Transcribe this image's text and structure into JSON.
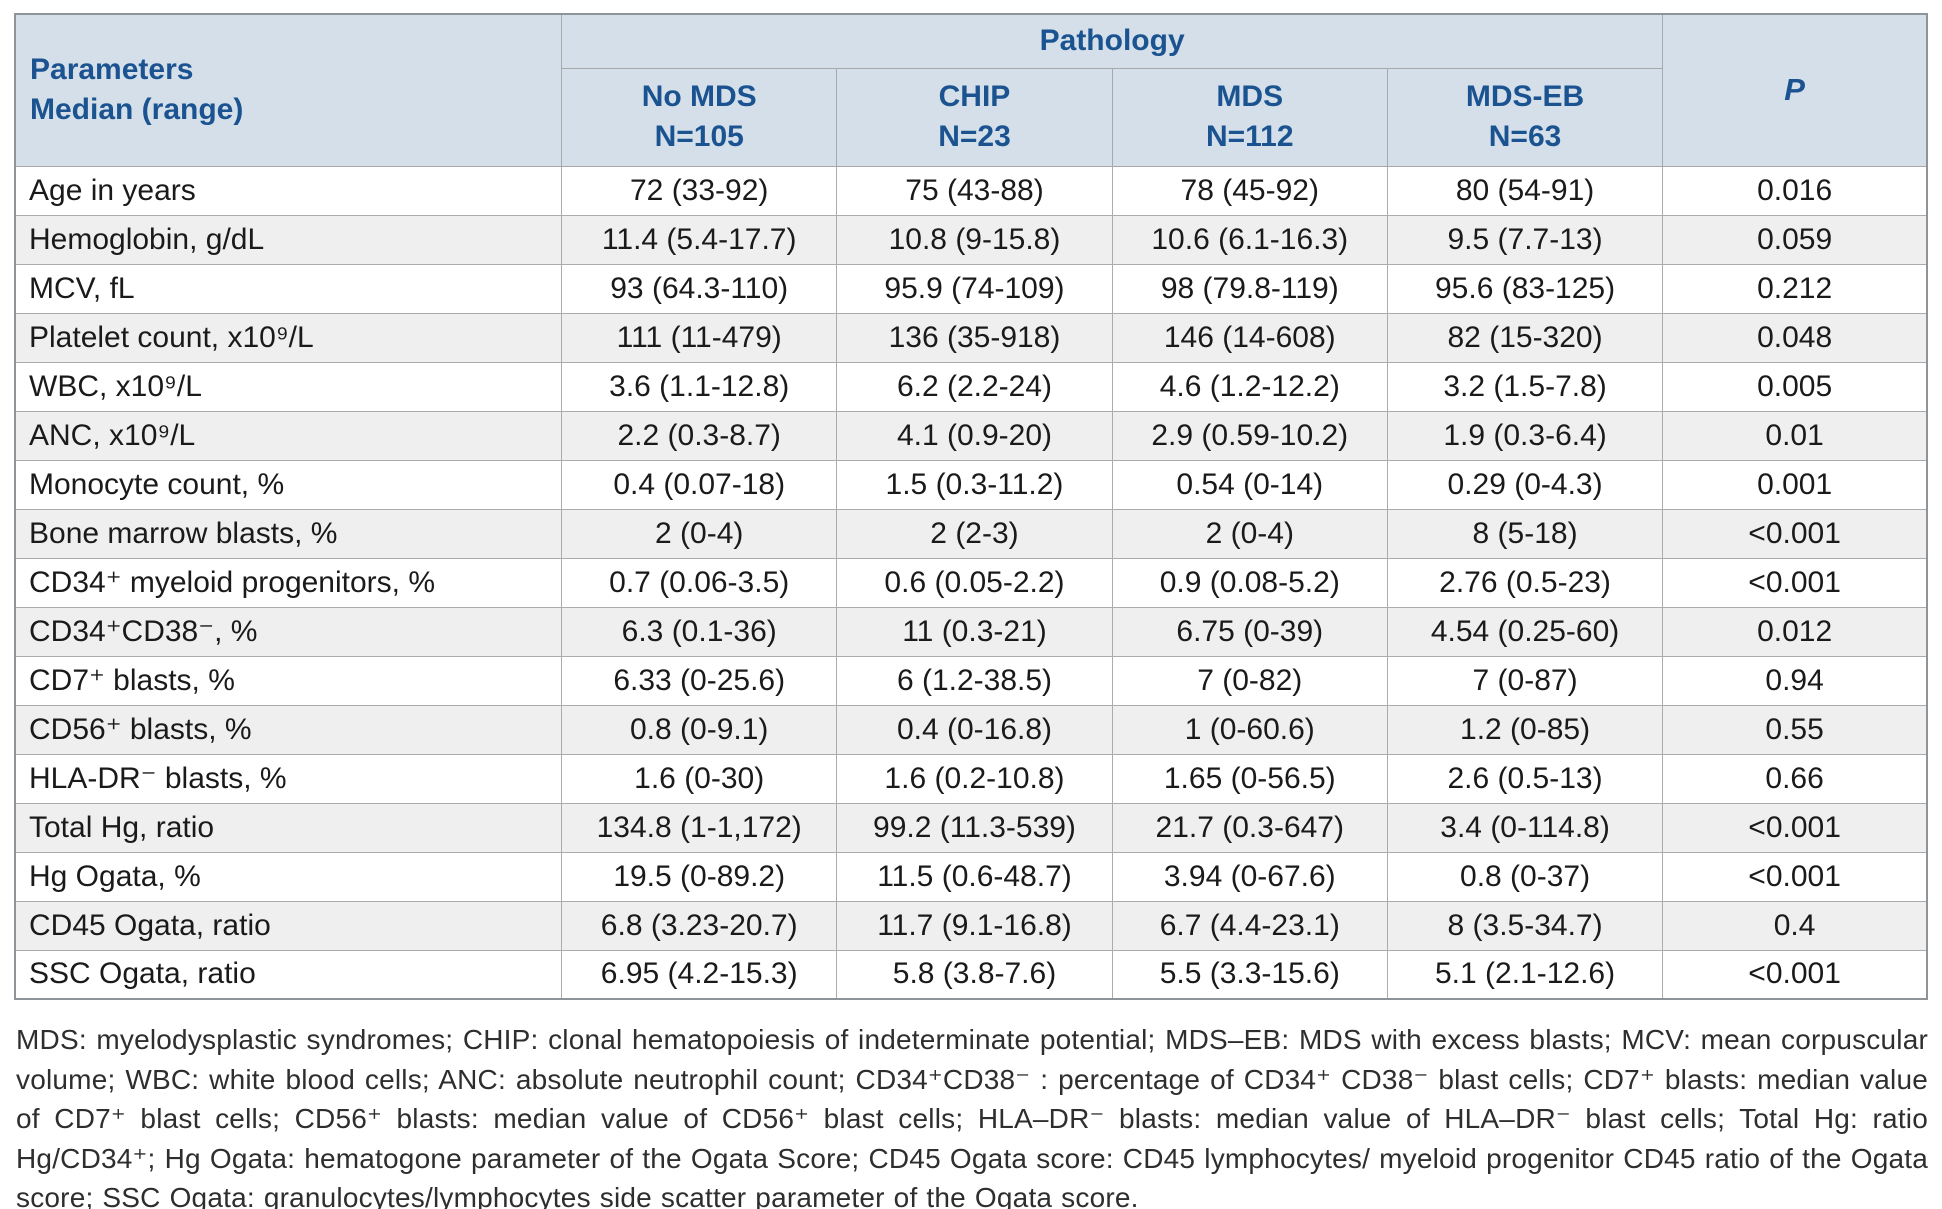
{
  "table": {
    "corner_line1": "Parameters",
    "corner_line2": "Median (range)",
    "group_header": "Pathology",
    "p_header": "P",
    "columns": [
      {
        "label": "No MDS",
        "n": "N=105"
      },
      {
        "label": "CHIP",
        "n": "N=23"
      },
      {
        "label": "MDS",
        "n": "N=112"
      },
      {
        "label": "MDS-EB",
        "n": "N=63"
      }
    ],
    "rows": [
      {
        "parameter": "Age in years",
        "no_mds": "72 (33-92)",
        "chip": "75 (43-88)",
        "mds": "78 (45-92)",
        "mds_eb": "80 (54-91)",
        "p": "0.016"
      },
      {
        "parameter": "Hemoglobin, g/dL",
        "no_mds": "11.4 (5.4-17.7)",
        "chip": "10.8 (9-15.8)",
        "mds": "10.6 (6.1-16.3)",
        "mds_eb": "9.5 (7.7-13)",
        "p": "0.059"
      },
      {
        "parameter": "MCV, fL",
        "no_mds": "93 (64.3-110)",
        "chip": "95.9 (74-109)",
        "mds": "98 (79.8-119)",
        "mds_eb": "95.6 (83-125)",
        "p": "0.212"
      },
      {
        "parameter": "Platelet count, x10⁹/L",
        "no_mds": "111 (11-479)",
        "chip": "136 (35-918)",
        "mds": "146 (14-608)",
        "mds_eb": "82 (15-320)",
        "p": "0.048"
      },
      {
        "parameter": "WBC, x10⁹/L",
        "no_mds": "3.6 (1.1-12.8)",
        "chip": "6.2 (2.2-24)",
        "mds": "4.6 (1.2-12.2)",
        "mds_eb": "3.2 (1.5-7.8)",
        "p": "0.005"
      },
      {
        "parameter": "ANC, x10⁹/L",
        "no_mds": "2.2 (0.3-8.7)",
        "chip": "4.1 (0.9-20)",
        "mds": "2.9 (0.59-10.2)",
        "mds_eb": "1.9 (0.3-6.4)",
        "p": "0.01"
      },
      {
        "parameter": "Monocyte count, %",
        "no_mds": "0.4 (0.07-18)",
        "chip": "1.5 (0.3-11.2)",
        "mds": "0.54 (0-14)",
        "mds_eb": "0.29 (0-4.3)",
        "p": "0.001"
      },
      {
        "parameter": "Bone marrow blasts, %",
        "no_mds": "2 (0-4)",
        "chip": "2 (2-3)",
        "mds": "2 (0-4)",
        "mds_eb": "8 (5-18)",
        "p": "<0.001"
      },
      {
        "parameter": "CD34⁺ myeloid progenitors, %",
        "no_mds": "0.7 (0.06-3.5)",
        "chip": "0.6 (0.05-2.2)",
        "mds": "0.9 (0.08-5.2)",
        "mds_eb": "2.76 (0.5-23)",
        "p": "<0.001"
      },
      {
        "parameter": "CD34⁺CD38⁻, %",
        "no_mds": "6.3 (0.1-36)",
        "chip": "11 (0.3-21)",
        "mds": "6.75 (0-39)",
        "mds_eb": "4.54 (0.25-60)",
        "p": "0.012"
      },
      {
        "parameter": "CD7⁺ blasts, %",
        "no_mds": "6.33 (0-25.6)",
        "chip": "6 (1.2-38.5)",
        "mds": "7 (0-82)",
        "mds_eb": "7 (0-87)",
        "p": "0.94"
      },
      {
        "parameter": "CD56⁺ blasts, %",
        "no_mds": "0.8 (0-9.1)",
        "chip": "0.4 (0-16.8)",
        "mds": "1 (0-60.6)",
        "mds_eb": "1.2 (0-85)",
        "p": "0.55"
      },
      {
        "parameter": "HLA-DR⁻ blasts, %",
        "no_mds": "1.6 (0-30)",
        "chip": "1.6 (0.2-10.8)",
        "mds": "1.65 (0-56.5)",
        "mds_eb": "2.6 (0.5-13)",
        "p": "0.66"
      },
      {
        "parameter": "Total Hg, ratio",
        "no_mds": "134.8 (1-1,172)",
        "chip": "99.2 (11.3-539)",
        "mds": "21.7 (0.3-647)",
        "mds_eb": "3.4 (0-114.8)",
        "p": "<0.001"
      },
      {
        "parameter": "Hg Ogata, %",
        "no_mds": "19.5 (0-89.2)",
        "chip": "11.5 (0.6-48.7)",
        "mds": "3.94 (0-67.6)",
        "mds_eb": "0.8 (0-37)",
        "p": "<0.001"
      },
      {
        "parameter": "CD45 Ogata, ratio",
        "no_mds": "6.8 (3.23-20.7)",
        "chip": "11.7 (9.1-16.8)",
        "mds": "6.7 (4.4-23.1)",
        "mds_eb": "8 (3.5-34.7)",
        "p": "0.4"
      },
      {
        "parameter": "SSC Ogata, ratio",
        "no_mds": "6.95 (4.2-15.3)",
        "chip": "5.8 (3.8-7.6)",
        "mds": "5.5 (3.3-15.6)",
        "mds_eb": "5.1 (2.1-12.6)",
        "p": "<0.001"
      }
    ]
  },
  "footnote": "MDS: myelodysplastic syndromes; CHIP: clonal hematopoiesis of indeterminate potential; MDS–EB: MDS with excess blasts; MCV: mean corpuscular volume; WBC: white blood cells; ANC: absolute neutrophil count; CD34⁺CD38⁻ : percentage of CD34⁺ CD38⁻ blast cells; CD7⁺ blasts: median value of CD7⁺ blast cells; CD56⁺ blasts: median value of CD56⁺ blast cells; HLA–DR⁻ blasts: median value of HLA–DR⁻ blast cells; Total Hg: ratio Hg/CD34⁺; Hg Ogata: hematogone parameter of the Ogata Score; CD45 Ogata score: CD45 lymphocytes/ myeloid progenitor CD45 ratio of the Ogata score;  SSC Ogata: granulocytes/lymphocytes side scatter parameter of the Ogata score.",
  "colors": {
    "header_background": "#d4dfe9",
    "header_text": "#1b5391",
    "stripe_row": "#efefef",
    "border": "#a6a9ac"
  }
}
